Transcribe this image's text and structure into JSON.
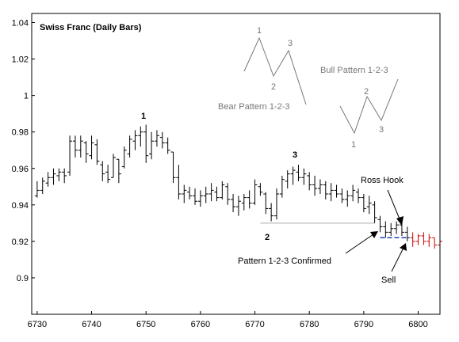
{
  "chart_data": {
    "type": "bar",
    "subtype": "ohlc-daily",
    "title": "Swiss Franc (Daily Bars)",
    "xlabel": "",
    "ylabel": "",
    "xlim": [
      6729,
      6804
    ],
    "ylim": [
      0.88,
      1.045
    ],
    "x_ticks": [
      6730,
      6740,
      6750,
      6760,
      6770,
      6780,
      6790,
      6800
    ],
    "y_ticks": [
      0.9,
      0.92,
      0.94,
      0.96,
      0.98,
      1,
      1.02,
      1.04
    ],
    "y_tick_labels": [
      "0.9",
      "0.92",
      "0.94",
      "0.96",
      "0.98",
      "1",
      "1.02",
      "1.04"
    ],
    "grid": false,
    "bars": [
      [
        6730,
        0.953,
        0.944,
        0.945,
        0.948
      ],
      [
        6731,
        0.955,
        0.946,
        0.948,
        0.953
      ],
      [
        6732,
        0.958,
        0.95,
        0.952,
        0.955
      ],
      [
        6733,
        0.96,
        0.951,
        0.955,
        0.957
      ],
      [
        6734,
        0.96,
        0.953,
        0.956,
        0.958
      ],
      [
        6735,
        0.96,
        0.952,
        0.958,
        0.956
      ],
      [
        6736,
        0.978,
        0.956,
        0.958,
        0.975
      ],
      [
        6737,
        0.978,
        0.966,
        0.975,
        0.97
      ],
      [
        6738,
        0.978,
        0.966,
        0.97,
        0.975
      ],
      [
        6739,
        0.975,
        0.963,
        0.974,
        0.968
      ],
      [
        6740,
        0.978,
        0.965,
        0.967,
        0.974
      ],
      [
        6741,
        0.976,
        0.962,
        0.973,
        0.964
      ],
      [
        6742,
        0.964,
        0.953,
        0.962,
        0.957
      ],
      [
        6743,
        0.962,
        0.952,
        0.958,
        0.954
      ],
      [
        6744,
        0.968,
        0.955,
        0.955,
        0.966
      ],
      [
        6745,
        0.965,
        0.952,
        0.965,
        0.957
      ],
      [
        6746,
        0.972,
        0.96,
        0.961,
        0.97
      ],
      [
        6747,
        0.978,
        0.966,
        0.968,
        0.976
      ],
      [
        6748,
        0.981,
        0.97,
        0.975,
        0.978
      ],
      [
        6749,
        0.983,
        0.972,
        0.978,
        0.98
      ],
      [
        6750,
        0.984,
        0.963,
        0.98,
        0.967
      ],
      [
        6751,
        0.98,
        0.965,
        0.968,
        0.975
      ],
      [
        6752,
        0.981,
        0.972,
        0.975,
        0.978
      ],
      [
        6753,
        0.98,
        0.971,
        0.977,
        0.974
      ],
      [
        6754,
        0.977,
        0.968,
        0.974,
        0.97
      ],
      [
        6755,
        0.969,
        0.952,
        0.969,
        0.955
      ],
      [
        6756,
        0.962,
        0.943,
        0.955,
        0.946
      ],
      [
        6757,
        0.951,
        0.941,
        0.946,
        0.948
      ],
      [
        6758,
        0.95,
        0.943,
        0.947,
        0.945
      ],
      [
        6759,
        0.949,
        0.94,
        0.945,
        0.942
      ],
      [
        6760,
        0.948,
        0.939,
        0.942,
        0.945
      ],
      [
        6761,
        0.95,
        0.941,
        0.945,
        0.946
      ],
      [
        6762,
        0.952,
        0.942,
        0.946,
        0.948
      ],
      [
        6763,
        0.95,
        0.942,
        0.947,
        0.944
      ],
      [
        6764,
        0.953,
        0.943,
        0.944,
        0.951
      ],
      [
        6765,
        0.952,
        0.94,
        0.95,
        0.943
      ],
      [
        6766,
        0.946,
        0.936,
        0.943,
        0.939
      ],
      [
        6767,
        0.945,
        0.934,
        0.939,
        0.942
      ],
      [
        6768,
        0.946,
        0.937,
        0.941,
        0.944
      ],
      [
        6769,
        0.948,
        0.938,
        0.944,
        0.941
      ],
      [
        6770,
        0.954,
        0.94,
        0.941,
        0.951
      ],
      [
        6771,
        0.952,
        0.945,
        0.95,
        0.947
      ],
      [
        6772,
        0.947,
        0.935,
        0.946,
        0.938
      ],
      [
        6773,
        0.941,
        0.931,
        0.938,
        0.934
      ],
      [
        6774,
        0.949,
        0.932,
        0.934,
        0.946
      ],
      [
        6775,
        0.956,
        0.944,
        0.946,
        0.954
      ],
      [
        6776,
        0.959,
        0.949,
        0.953,
        0.957
      ],
      [
        6777,
        0.961,
        0.951,
        0.957,
        0.959
      ],
      [
        6778,
        0.962,
        0.953,
        0.958,
        0.955
      ],
      [
        6779,
        0.96,
        0.951,
        0.955,
        0.957
      ],
      [
        6780,
        0.958,
        0.948,
        0.956,
        0.951
      ],
      [
        6781,
        0.956,
        0.945,
        0.951,
        0.949
      ],
      [
        6782,
        0.954,
        0.946,
        0.949,
        0.951
      ],
      [
        6783,
        0.953,
        0.943,
        0.951,
        0.946
      ],
      [
        6784,
        0.952,
        0.942,
        0.946,
        0.948
      ],
      [
        6785,
        0.951,
        0.944,
        0.948,
        0.946
      ],
      [
        6786,
        0.949,
        0.941,
        0.946,
        0.943
      ],
      [
        6787,
        0.948,
        0.939,
        0.943,
        0.945
      ],
      [
        6788,
        0.951,
        0.942,
        0.945,
        0.948
      ],
      [
        6789,
        0.949,
        0.941,
        0.947,
        0.944
      ],
      [
        6790,
        0.946,
        0.936,
        0.944,
        0.938
      ],
      [
        6791,
        0.945,
        0.935,
        0.939,
        0.941
      ],
      [
        6792,
        0.942,
        0.93,
        0.94,
        0.933
      ],
      [
        6793,
        0.934,
        0.925,
        0.932,
        0.928
      ],
      [
        6794,
        0.931,
        0.922,
        0.928,
        0.925
      ],
      [
        6795,
        0.93,
        0.923,
        0.925,
        0.927
      ],
      [
        6796,
        0.931,
        0.924,
        0.927,
        0.929
      ],
      [
        6797,
        0.932,
        0.923,
        0.929,
        0.925
      ],
      [
        6798,
        0.928,
        0.92,
        0.925,
        0.922
      ]
    ],
    "bars_after_entry": [
      [
        6799,
        0.925,
        0.917,
        0.922,
        0.92
      ],
      [
        6800,
        0.924,
        0.918,
        0.92,
        0.923
      ],
      [
        6801,
        0.925,
        0.918,
        0.923,
        0.92
      ],
      [
        6802,
        0.924,
        0.917,
        0.92,
        0.922
      ],
      [
        6803,
        0.922,
        0.916,
        0.922,
        0.918
      ],
      [
        6804,
        0.921,
        0.917,
        0.918,
        0.92
      ]
    ],
    "bar_color": "#000000",
    "bar_after_entry_color": "#cc0000",
    "entry_line_color": "#1f3fbf",
    "ref_line_color": "#aaaaaa",
    "pattern_line_color": "#777777",
    "reference_line": {
      "x": [
        6771,
        6792
      ],
      "y": 0.93
    },
    "entry_line": {
      "x": [
        6793,
        6798
      ],
      "y": 0.922
    },
    "swing_labels": [
      {
        "text": "1",
        "x": 6750,
        "y": 0.984
      },
      {
        "text": "2",
        "x": 6773,
        "y": 0.931
      },
      {
        "text": "3",
        "x": 6778,
        "y": 0.962
      }
    ],
    "annotations": {
      "ross_hook": "Ross Hook",
      "confirmed": "Pattern 1-2-3 Confirmed",
      "sell": "Sell",
      "bear_pattern": "Bear Pattern 1-2-3",
      "bull_pattern": "Bull Pattern 1-2-3"
    },
    "bear_points": [
      "1",
      "2",
      "3"
    ],
    "bull_points": [
      "1",
      "2",
      "3"
    ]
  }
}
